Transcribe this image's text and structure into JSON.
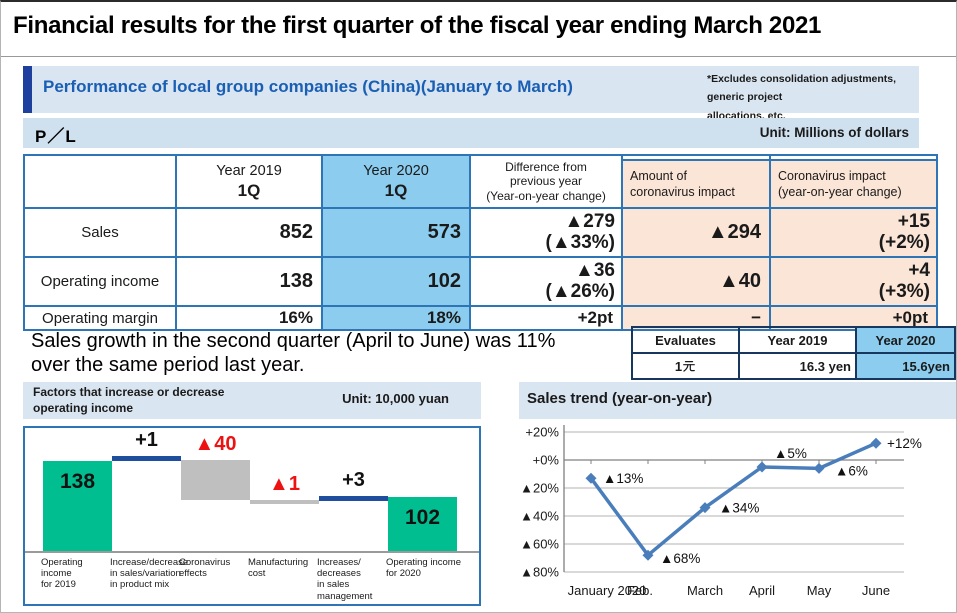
{
  "title": "Financial results for the first quarter of the fiscal year ending March 2021",
  "section": {
    "heading": "Performance of local group companies (China)(January to March)",
    "note": "*Excludes consolidation adjustments, generic project\nallocations, etc."
  },
  "pl_bar": {
    "label": "P／L",
    "unit": "Unit: Millions of dollars"
  },
  "table": {
    "headers": {
      "year2019_l1": "Year 2019",
      "year2019_l2": "1Q",
      "year2020_l1": "Year 2020",
      "year2020_l2": "1Q",
      "diff": "Difference from\nprevious year\n(Year-on-year change)",
      "covid_amount": "Amount of\ncoronavirus impact",
      "covid_yoy": "Coronavirus impact\n(year-on-year change)"
    },
    "rows": [
      {
        "label": "Sales",
        "y2019": "852",
        "y2020": "573",
        "diff": "▲279\n(▲33%)",
        "covid": "▲294",
        "covid_yoy": "+15\n(+2%)"
      },
      {
        "label": "Operating income",
        "y2019": "138",
        "y2020": "102",
        "diff": "▲36\n(▲26%)",
        "covid": "▲40",
        "covid_yoy": "+4\n(+3%)"
      },
      {
        "label": "Operating margin",
        "y2019": "16%",
        "y2020": "18%",
        "diff": "+2pt",
        "covid": "−",
        "covid_yoy": "+0pt"
      }
    ]
  },
  "growth_text": "Sales growth in the second quarter (April to June) was 11%\nover the same period last year.",
  "fx_table": {
    "headers": [
      "Evaluates",
      "Year 2019",
      "Year 2020"
    ],
    "row": {
      "label": "1元",
      "label_digit": "1",
      "y2019": "16.3 yen",
      "y2020": "15.6yen"
    }
  },
  "chart_data": [
    {
      "type": "waterfall",
      "title": "Factors that increase or decrease\noperating income",
      "unit": "Unit: 10,000 yuan",
      "categories": [
        [
          "Operating",
          "income",
          "for 2019"
        ],
        [
          "Increase/decrease",
          "in sales/variation",
          "in product mix"
        ],
        [
          "Coronavirus",
          "effects"
        ],
        [
          "Manufacturing",
          "cost"
        ],
        [
          "Increases/",
          "decreases",
          "in sales",
          "management"
        ],
        [
          "Operating income",
          "for 2020"
        ]
      ],
      "bars": [
        {
          "kind": "total",
          "value": 138,
          "label": "138"
        },
        {
          "kind": "delta",
          "value": 1,
          "label": "+1"
        },
        {
          "kind": "delta",
          "value": -40,
          "label": "▲40"
        },
        {
          "kind": "delta",
          "value": -1,
          "label": "▲1"
        },
        {
          "kind": "delta",
          "value": 3,
          "label": "+3"
        },
        {
          "kind": "total",
          "value": 102,
          "label": "102"
        }
      ],
      "axis_min": 48,
      "colors": {
        "total": "#00BE8F",
        "up": "#1F4E9F",
        "down": "#BFBFBF",
        "neg_label": "#EE1111",
        "pos_label": "#111111"
      }
    },
    {
      "type": "line",
      "title": "Sales trend (year-on-year)",
      "x": [
        "January 2020",
        "Feb.",
        "March",
        "April",
        "May",
        "June"
      ],
      "values": [
        -13,
        -68,
        -34,
        -5,
        -6,
        12
      ],
      "point_labels": [
        "▲13%",
        "▲68%",
        "▲34%",
        "▲5%",
        "▲6%",
        "+12%"
      ],
      "ytick_labels": [
        "+20%",
        "+0%",
        "▲20%",
        "▲40%",
        "▲60%",
        "▲80%"
      ],
      "yticks": [
        20,
        0,
        -20,
        -40,
        -60,
        -80
      ],
      "ylim": [
        -80,
        20
      ],
      "grid": true,
      "line_color": "#4A7EBB",
      "grid_color": "#B3B3B3",
      "zero_line_color": "#808080"
    }
  ]
}
